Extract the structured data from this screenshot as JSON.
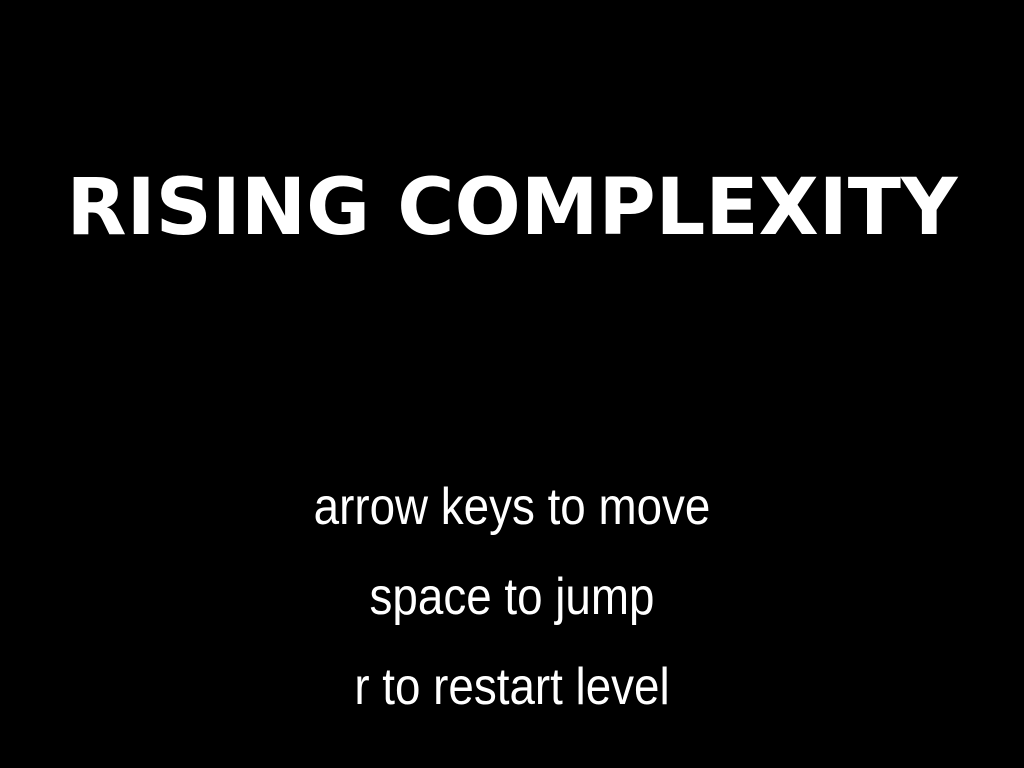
{
  "game": {
    "title": "RISING COMPLEXITY",
    "instructions": [
      "arrow keys to move",
      "space to jump",
      "r to restart level"
    ]
  },
  "colors": {
    "background": "#000000",
    "text": "#ffffff"
  }
}
